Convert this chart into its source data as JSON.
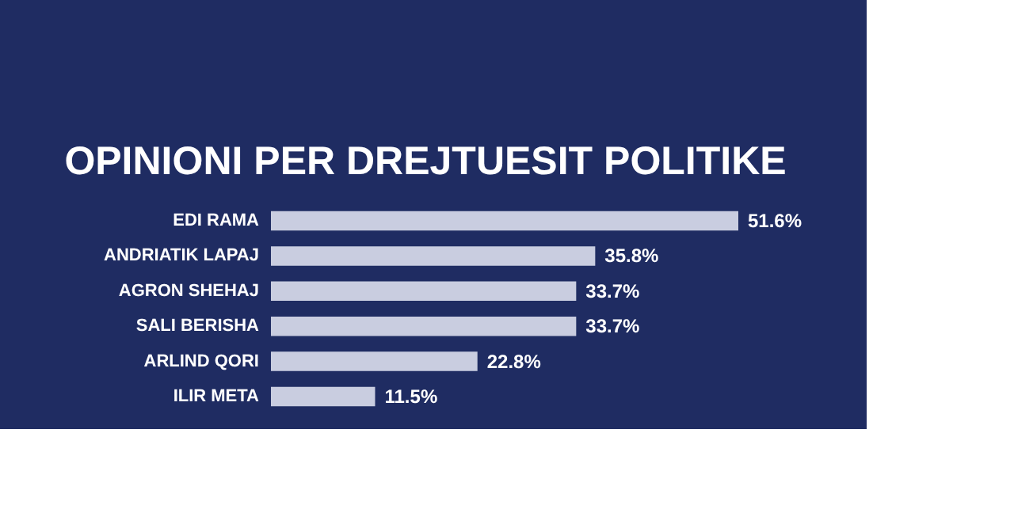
{
  "chart_data": {
    "type": "bar",
    "orientation": "horizontal",
    "title": "OPINIONI PER DREJTUESIT POLITIKE",
    "categories": [
      "EDI RAMA",
      "ANDRIATIK LAPAJ",
      "AGRON SHEHAJ",
      "SALI BERISHA",
      "ARLIND QORI",
      "ILIR META"
    ],
    "values": [
      51.6,
      35.8,
      33.7,
      33.7,
      22.8,
      11.5
    ],
    "color": "#c9cde0",
    "value_labels": [
      "51.6%",
      "35.8%",
      "33.7%",
      "33.7%",
      "22.8%",
      "11.5%"
    ]
  }
}
